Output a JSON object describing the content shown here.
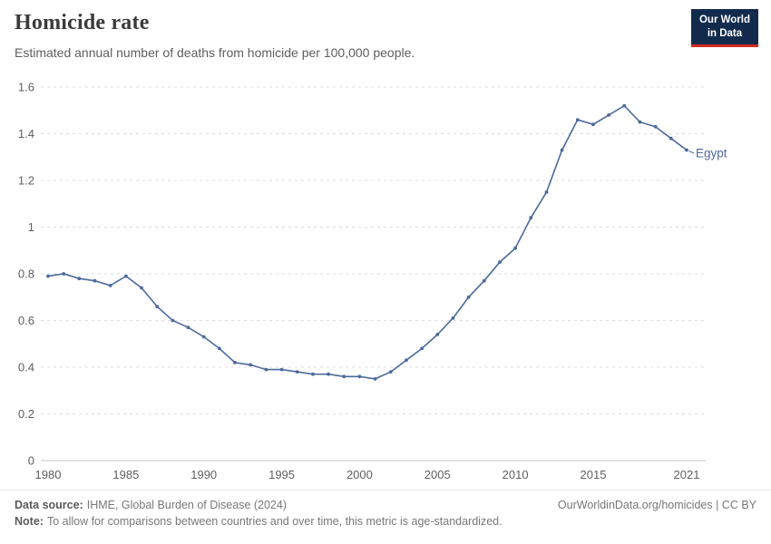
{
  "header": {
    "title": "Homicide rate",
    "subtitle": "Estimated annual number of deaths from homicide per 100,000 people.",
    "logo_line1": "Our World",
    "logo_line2": "in Data",
    "logo_bg": "#122b4d",
    "logo_accent": "#d42a20"
  },
  "chart_data": {
    "type": "line",
    "title": "Homicide rate",
    "entity": "Egypt",
    "color": "#4c6a9c",
    "grid": "horizontal-dashed",
    "legend_position": "end-of-line-label",
    "xlabel": "",
    "ylabel": "",
    "x": [
      1980,
      1981,
      1982,
      1983,
      1984,
      1985,
      1986,
      1987,
      1988,
      1989,
      1990,
      1991,
      1992,
      1993,
      1994,
      1995,
      1996,
      1997,
      1998,
      1999,
      2000,
      2001,
      2002,
      2003,
      2004,
      2005,
      2006,
      2007,
      2008,
      2009,
      2010,
      2011,
      2012,
      2013,
      2014,
      2015,
      2016,
      2017,
      2018,
      2019,
      2020,
      2021
    ],
    "values": [
      0.79,
      0.8,
      0.78,
      0.77,
      0.75,
      0.79,
      0.74,
      0.66,
      0.6,
      0.57,
      0.53,
      0.48,
      0.42,
      0.41,
      0.39,
      0.39,
      0.38,
      0.37,
      0.37,
      0.36,
      0.36,
      0.35,
      0.38,
      0.43,
      0.48,
      0.54,
      0.61,
      0.7,
      0.77,
      0.85,
      0.91,
      1.04,
      1.15,
      1.33,
      1.46,
      1.44,
      1.48,
      1.52,
      1.45,
      1.43,
      1.38,
      1.33
    ],
    "ylim": [
      0,
      1.6
    ],
    "yticks": [
      0,
      0.2,
      0.4,
      0.6,
      0.8,
      1,
      1.2,
      1.4,
      1.6
    ],
    "xticks": [
      1980,
      1985,
      1990,
      1995,
      2000,
      2005,
      2010,
      2015,
      2021
    ]
  },
  "footer": {
    "source_label": "Data source:",
    "source_value": "IHME, Global Burden of Disease (2024)",
    "note_label": "Note:",
    "note_value": "To allow for comparisons between countries and over time, this metric is age-standardized.",
    "credit": "OurWorldinData.org/homicides | CC BY"
  }
}
